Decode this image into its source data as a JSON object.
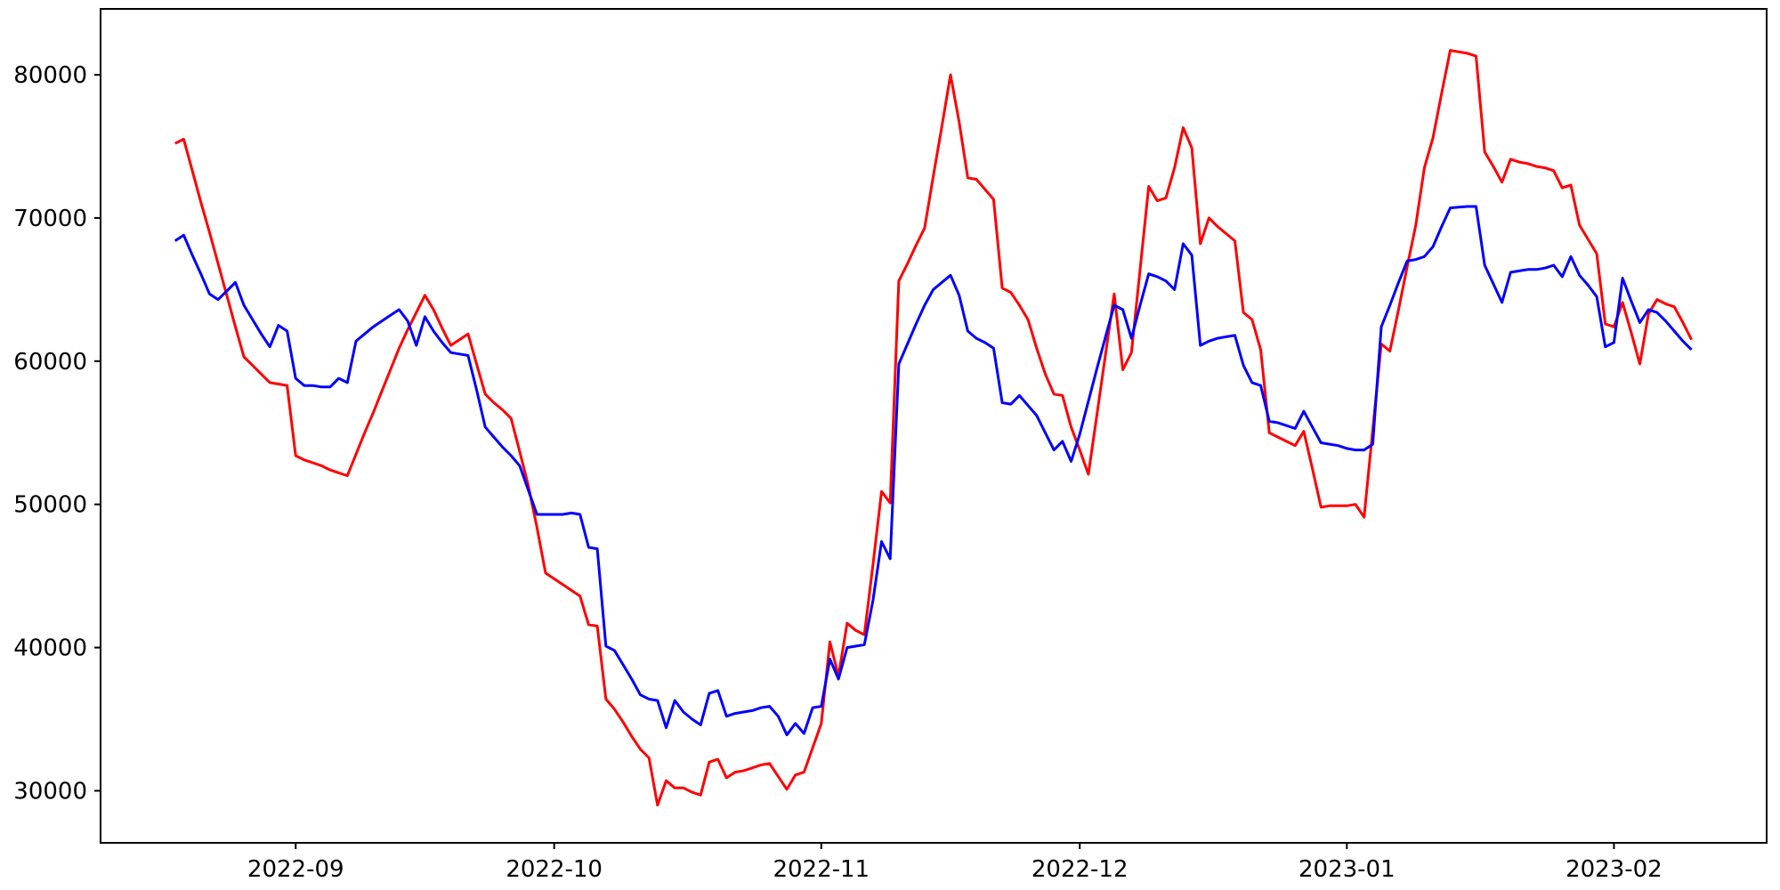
{
  "figure": {
    "background_color": "#ffffff",
    "spine_color": "#000000"
  },
  "chart_data": {
    "type": "line",
    "title": "",
    "xlabel": "",
    "ylabel": "",
    "grid": false,
    "legend": null,
    "x_axis": {
      "kind": "date",
      "start_date": "2022-08-18",
      "step_days": 1,
      "tick_labels": [
        "2022-09",
        "2022-10",
        "2022-11",
        "2022-12",
        "2023-01",
        "2023-02"
      ],
      "tick_day_offsets": [
        14,
        44,
        75,
        105,
        136,
        167
      ]
    },
    "y_axis": {
      "ticks": [
        30000,
        40000,
        50000,
        60000,
        70000,
        80000
      ],
      "tick_labels": [
        "30000",
        "40000",
        "50000",
        "60000",
        "70000",
        "80000"
      ],
      "min": 30000,
      "max": 80000
    },
    "series": [
      {
        "name": "red-series",
        "color": "#ff0000",
        "line_width": 3,
        "values": [
          75200,
          75500,
          73300,
          71100,
          69000,
          66800,
          64600,
          62400,
          60300,
          59700,
          59100,
          58500,
          58400,
          58300,
          53400,
          53100,
          52900,
          52700,
          52400,
          52200,
          52000,
          53500,
          55000,
          56400,
          57900,
          59400,
          60900,
          62200,
          63400,
          64600,
          63600,
          62300,
          61100,
          61500,
          61900,
          59800,
          57700,
          57100,
          56600,
          56000,
          53700,
          51300,
          48400,
          45200,
          44800,
          44400,
          44000,
          43600,
          41600,
          41500,
          36400,
          35700,
          34800,
          33800,
          32900,
          32300,
          29000,
          30700,
          30200,
          30200,
          29900,
          29700,
          32000,
          32200,
          30900,
          31300,
          31400,
          31600,
          31800,
          31900,
          31000,
          30100,
          31100,
          31300,
          33000,
          34700,
          40400,
          38000,
          41700,
          41200,
          40900,
          45800,
          50900,
          50100,
          65600,
          66800,
          68100,
          69300,
          72900,
          76400,
          80000,
          76700,
          72800,
          72700,
          72000,
          71300,
          65100,
          64800,
          63900,
          62900,
          60900,
          59100,
          57700,
          57600,
          55400,
          53800,
          52100,
          56300,
          60500,
          64700,
          59400,
          60600,
          66400,
          72200,
          71200,
          71400,
          73500,
          76300,
          74900,
          68200,
          70000,
          69400,
          68900,
          68400,
          63400,
          62900,
          60800,
          55000,
          54700,
          54400,
          54100,
          55100,
          52500,
          49800,
          49900,
          49900,
          49900,
          50000,
          49100,
          55200,
          61200,
          60700,
          63600,
          66600,
          69500,
          73500,
          75600,
          78700,
          81700,
          81600,
          81500,
          81300,
          74600,
          73600,
          72500,
          74100,
          73900,
          73800,
          73600,
          73500,
          73300,
          72100,
          72300,
          69500,
          68500,
          67500,
          62600,
          62400,
          64100,
          62000,
          59800,
          63300,
          64300,
          64000,
          63800,
          62700,
          61500
        ]
      },
      {
        "name": "blue-series",
        "color": "#0000ff",
        "line_width": 3,
        "values": [
          68400,
          68800,
          67400,
          66100,
          64700,
          64300,
          64900,
          65500,
          63900,
          62900,
          61900,
          61000,
          62500,
          62100,
          58800,
          58300,
          58300,
          58200,
          58200,
          58800,
          58500,
          61400,
          61900,
          62400,
          62800,
          63200,
          63600,
          62800,
          61100,
          63100,
          62100,
          61300,
          60600,
          60500,
          60400,
          58000,
          55400,
          54700,
          54000,
          53400,
          52700,
          51000,
          49300,
          49300,
          49300,
          49300,
          49400,
          49300,
          47000,
          46900,
          40100,
          39800,
          38800,
          37800,
          36700,
          36400,
          36300,
          34400,
          36300,
          35500,
          35000,
          34600,
          36800,
          37000,
          35200,
          35400,
          35500,
          35600,
          35800,
          35900,
          35200,
          33900,
          34700,
          34000,
          35800,
          35900,
          39200,
          37800,
          40000,
          40100,
          40200,
          43300,
          47400,
          46200,
          59800,
          61200,
          62600,
          63900,
          65000,
          65500,
          66000,
          64600,
          62100,
          61600,
          61300,
          60900,
          57100,
          57000,
          57600,
          56900,
          56200,
          55000,
          53800,
          54400,
          53000,
          54900,
          57200,
          59500,
          61700,
          63900,
          63600,
          61600,
          63900,
          66100,
          65900,
          65600,
          65000,
          68200,
          67400,
          61100,
          61400,
          61600,
          61700,
          61800,
          59700,
          58500,
          58300,
          55800,
          55700,
          55500,
          55300,
          56500,
          55400,
          54300,
          54200,
          54100,
          53900,
          53800,
          53800,
          54200,
          62400,
          63900,
          65500,
          67000,
          67100,
          67300,
          68000,
          69400,
          70700,
          70750,
          70800,
          70800,
          66700,
          65400,
          64100,
          66200,
          66300,
          66400,
          66400,
          66500,
          66700,
          65900,
          67300,
          66000,
          65300,
          64500,
          61000,
          61300,
          65800,
          64200,
          62700,
          63600,
          63400,
          62800,
          62100,
          61400,
          60800
        ]
      }
    ]
  }
}
